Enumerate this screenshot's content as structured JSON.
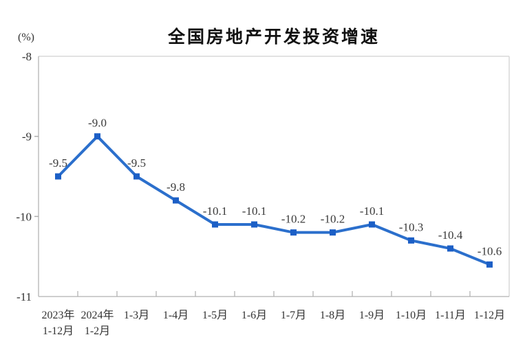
{
  "chart_data": {
    "type": "line",
    "title": "全国房地产开发投资增速",
    "unit_label": "(%)",
    "ylabel": "(%)",
    "ylim": [
      -11,
      -8
    ],
    "yticks": [
      -8,
      -9,
      -10,
      -11
    ],
    "ytick_labels": [
      "-8",
      "-9",
      "-10",
      "-11"
    ],
    "category_lines": [
      [
        "2023年",
        "1-12月"
      ],
      [
        "2024年",
        "1-2月"
      ],
      [
        "1-3月"
      ],
      [
        "1-4月"
      ],
      [
        "1-5月"
      ],
      [
        "1-6月"
      ],
      [
        "1-7月"
      ],
      [
        "1-8月"
      ],
      [
        "1-9月"
      ],
      [
        "1-10月"
      ],
      [
        "1-11月"
      ],
      [
        "1-12月"
      ]
    ],
    "values": [
      -9.5,
      -9.0,
      -9.5,
      -9.8,
      -10.1,
      -10.1,
      -10.2,
      -10.2,
      -10.1,
      -10.3,
      -10.4,
      -10.6
    ],
    "data_labels": [
      "-9.5",
      "-9.0",
      "-9.5",
      "-9.8",
      "-10.1",
      "-10.1",
      "-10.2",
      "-10.2",
      "-10.1",
      "-10.3",
      "-10.4",
      "-10.6"
    ],
    "grid": "off",
    "legend": "none",
    "marker": "square"
  },
  "colors": {
    "line": "#2B6FCC",
    "marker": "#1C5FC6",
    "title_text": "#111111",
    "axis_text": "#333333",
    "data_label_text": "#3A3A3A",
    "border_light": "#D9D9D9",
    "axis_line": "#BDBDBD",
    "tick": "#ADADAD",
    "background": "#FFFFFF"
  }
}
